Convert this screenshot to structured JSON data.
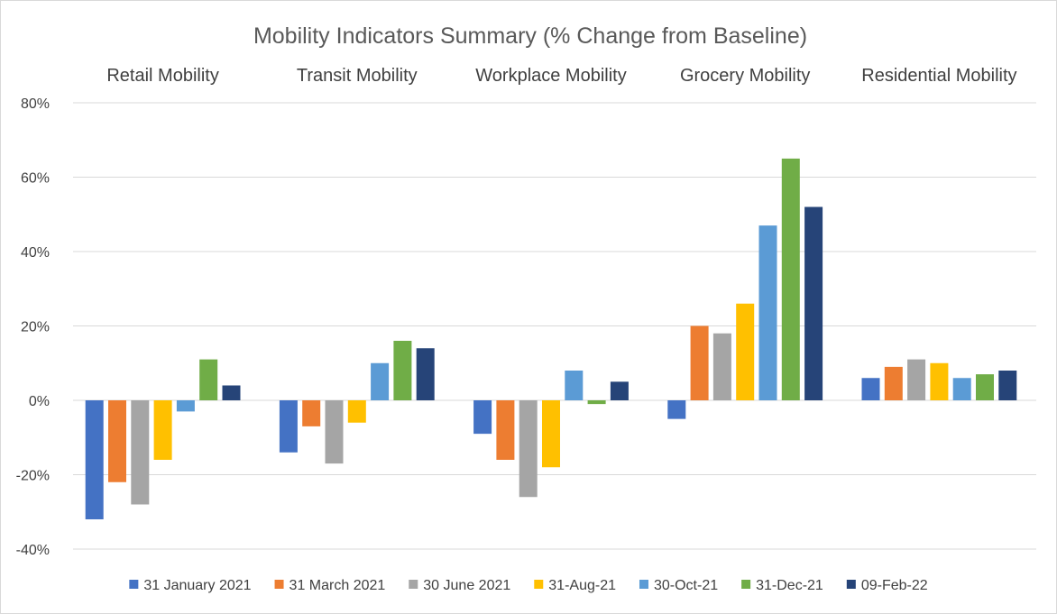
{
  "chart_data": {
    "type": "bar",
    "title": "Mobility Indicators Summary (% Change from Baseline)",
    "categories": [
      "Retail Mobility",
      "Transit Mobility",
      "Workplace Mobility",
      "Grocery Mobility",
      "Residential Mobility"
    ],
    "ylim": [
      -40,
      80
    ],
    "yticks": [
      -40,
      -20,
      0,
      20,
      40,
      60,
      80
    ],
    "ytick_labels": [
      "-40%",
      "-20%",
      "0%",
      "20%",
      "40%",
      "60%",
      "80%"
    ],
    "grid": true,
    "legend_position": "bottom",
    "category_label_position": "top",
    "series": [
      {
        "name": "31 January 2021",
        "color": "#4472C4",
        "values": [
          -32,
          -14,
          -9,
          -5,
          6
        ]
      },
      {
        "name": "31 March 2021",
        "color": "#ED7D31",
        "values": [
          -22,
          -7,
          -16,
          20,
          9
        ]
      },
      {
        "name": "30 June 2021",
        "color": "#A5A5A5",
        "values": [
          -28,
          -17,
          -26,
          18,
          11
        ]
      },
      {
        "name": "31-Aug-21",
        "color": "#FFC000",
        "values": [
          -16,
          -6,
          -18,
          26,
          10
        ]
      },
      {
        "name": "30-Oct-21",
        "color": "#5B9BD5",
        "values": [
          -3,
          10,
          8,
          47,
          6
        ]
      },
      {
        "name": "31-Dec-21",
        "color": "#70AD47",
        "values": [
          11,
          16,
          -1,
          65,
          7
        ]
      },
      {
        "name": "09-Feb-22",
        "color": "#264478",
        "values": [
          4,
          14,
          5,
          52,
          8
        ]
      }
    ]
  }
}
